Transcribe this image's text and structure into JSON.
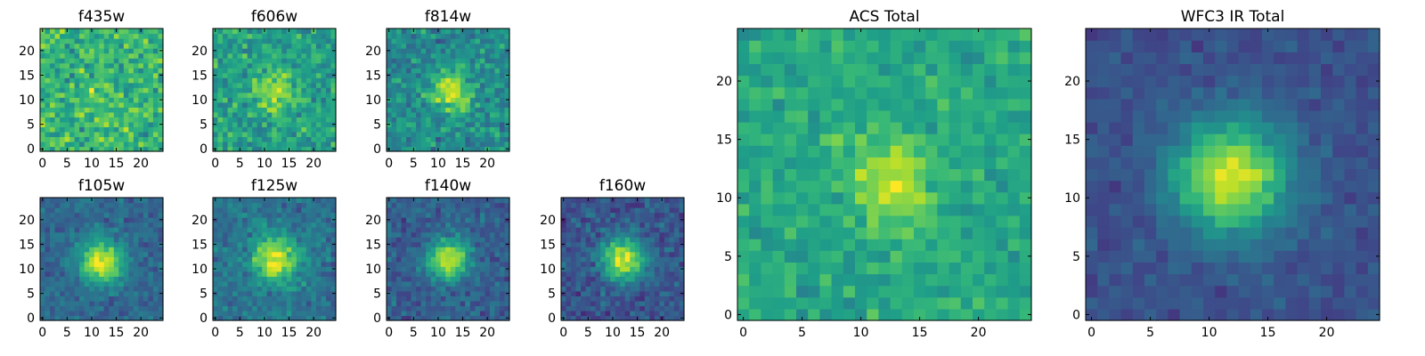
{
  "figure": {
    "colormap": "viridis",
    "colormap_stops": [
      "#440154",
      "#482878",
      "#3e4989",
      "#31688e",
      "#26828e",
      "#1f9e89",
      "#35b779",
      "#6ece58",
      "#b5de2b",
      "#fde725"
    ]
  },
  "chart_data": [
    {
      "type": "heatmap",
      "title": "f435w",
      "grid_size": 25,
      "ticks": [
        0,
        5,
        10,
        15,
        20
      ],
      "xlim": [
        0,
        24
      ],
      "ylim": [
        0,
        24
      ],
      "cmap": "viridis",
      "source_center": [
        12,
        11
      ],
      "source_sigma": 3.0,
      "source_peak": 0.05,
      "background": 0.66,
      "noise": 0.17,
      "grid": false
    },
    {
      "type": "heatmap",
      "title": "f606w",
      "grid_size": 25,
      "ticks": [
        0,
        5,
        10,
        15,
        20
      ],
      "xlim": [
        0,
        24
      ],
      "ylim": [
        0,
        24
      ],
      "cmap": "viridis",
      "source_center": [
        12,
        11.5
      ],
      "source_sigma": 2.8,
      "source_peak": 0.32,
      "background": 0.56,
      "noise": 0.15,
      "grid": false
    },
    {
      "type": "heatmap",
      "title": "f814w",
      "grid_size": 25,
      "ticks": [
        0,
        5,
        10,
        15,
        20
      ],
      "xlim": [
        0,
        24
      ],
      "ylim": [
        0,
        24
      ],
      "cmap": "viridis",
      "source_center": [
        12.5,
        11.5
      ],
      "source_sigma": 2.8,
      "source_peak": 0.45,
      "background": 0.48,
      "noise": 0.15,
      "grid": false
    },
    {
      "type": "heatmap",
      "title": "f105w",
      "grid_size": 25,
      "ticks": [
        0,
        5,
        10,
        15,
        20
      ],
      "xlim": [
        0,
        24
      ],
      "ylim": [
        0,
        24
      ],
      "cmap": "viridis",
      "source_center": [
        12,
        11.5
      ],
      "source_sigma": 3.2,
      "source_peak": 0.62,
      "background": 0.33,
      "noise": 0.09,
      "grid": false
    },
    {
      "type": "heatmap",
      "title": "f125w",
      "grid_size": 25,
      "ticks": [
        0,
        5,
        10,
        15,
        20
      ],
      "xlim": [
        0,
        24
      ],
      "ylim": [
        0,
        24
      ],
      "cmap": "viridis",
      "source_center": [
        12,
        12
      ],
      "source_sigma": 3.3,
      "source_peak": 0.58,
      "background": 0.38,
      "noise": 0.11,
      "grid": false
    },
    {
      "type": "heatmap",
      "title": "f140w",
      "grid_size": 25,
      "ticks": [
        0,
        5,
        10,
        15,
        20
      ],
      "xlim": [
        0,
        24
      ],
      "ylim": [
        0,
        24
      ],
      "cmap": "viridis",
      "source_center": [
        12,
        12
      ],
      "source_sigma": 2.9,
      "source_peak": 0.65,
      "background": 0.3,
      "noise": 0.1,
      "grid": false
    },
    {
      "type": "heatmap",
      "title": "f160w",
      "grid_size": 25,
      "ticks": [
        0,
        5,
        10,
        15,
        20
      ],
      "xlim": [
        0,
        24
      ],
      "ylim": [
        0,
        24
      ],
      "cmap": "viridis",
      "source_center": [
        12,
        12
      ],
      "source_sigma": 3.1,
      "source_peak": 0.68,
      "background": 0.26,
      "noise": 0.11,
      "grid": false
    },
    {
      "type": "heatmap",
      "title": "ACS Total",
      "grid_size": 25,
      "ticks": [
        0,
        5,
        10,
        15,
        20
      ],
      "xlim": [
        0,
        24
      ],
      "ylim": [
        0,
        24
      ],
      "cmap": "viridis",
      "source_center": [
        12.5,
        11.5
      ],
      "source_sigma": 2.4,
      "source_peak": 0.34,
      "background": 0.6,
      "noise": 0.1,
      "grid": false
    },
    {
      "type": "heatmap",
      "title": "WFC3 IR Total",
      "grid_size": 25,
      "ticks": [
        0,
        5,
        10,
        15,
        20
      ],
      "xlim": [
        0,
        24
      ],
      "ylim": [
        0,
        24
      ],
      "cmap": "viridis",
      "source_center": [
        11.8,
        11.8
      ],
      "source_sigma": 3.4,
      "source_peak": 0.7,
      "background": 0.25,
      "noise": 0.06,
      "grid": false
    }
  ]
}
